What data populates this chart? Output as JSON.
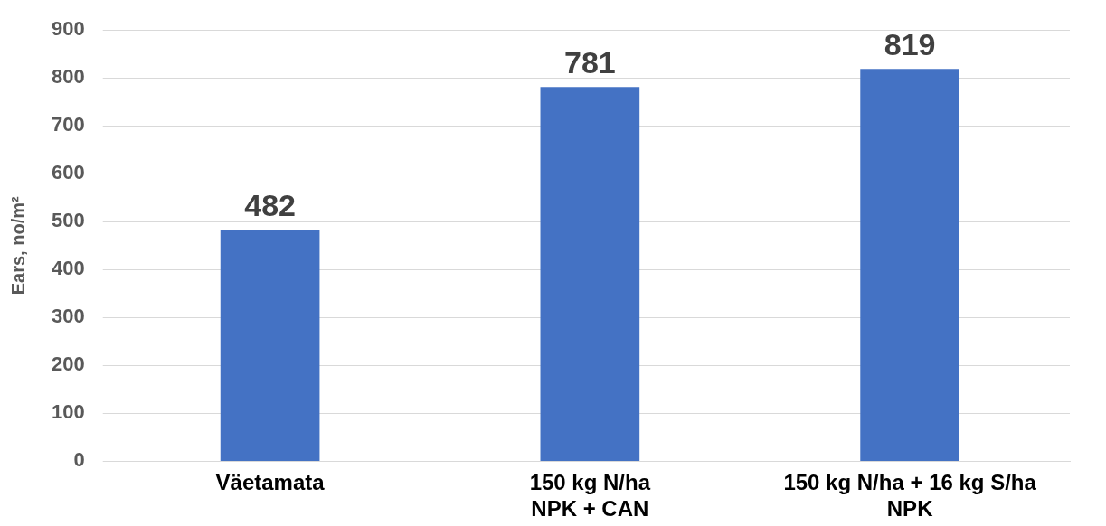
{
  "chart_data": {
    "type": "bar",
    "ylabel": "Ears, no/m²",
    "categories": [
      "Väetamata",
      "150 kg N/ha\nNPK + CAN",
      "150 kg N/ha + 16 kg S/ha\nNPK"
    ],
    "values": [
      482,
      781,
      819
    ],
    "color": "#4472c4",
    "ylim": [
      0,
      900
    ],
    "yticks": [
      0,
      100,
      200,
      300,
      400,
      500,
      600,
      700,
      800,
      900
    ],
    "grid": "y",
    "legend": false,
    "data_labels": true
  }
}
